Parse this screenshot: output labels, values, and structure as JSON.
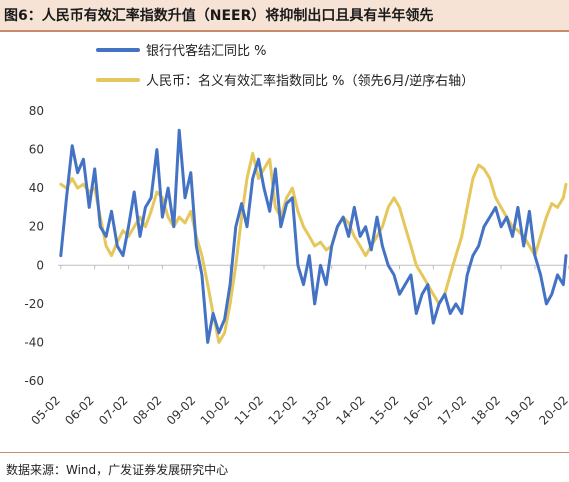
{
  "title": "图6：人民币有效汇率指数升值（NEER）将抑制出口且具有半年领先",
  "source": "数据来源：Wind，广发证券发展研究中心",
  "colors": {
    "blue": "#4472c4",
    "gold": "#e6c75b",
    "axis": "#bfbfbf"
  },
  "chart_data": {
    "type": "line",
    "ylim": [
      -60,
      80
    ],
    "yticks": [
      -60,
      -40,
      -20,
      0,
      20,
      40,
      60,
      80
    ],
    "xlim": [
      2005.0,
      2020.0
    ],
    "xticks": [
      {
        "label": "05-02",
        "x": 2005.083
      },
      {
        "label": "06-02",
        "x": 2006.083
      },
      {
        "label": "07-02",
        "x": 2007.083
      },
      {
        "label": "08-02",
        "x": 2008.083
      },
      {
        "label": "09-02",
        "x": 2009.083
      },
      {
        "label": "10-02",
        "x": 2010.083
      },
      {
        "label": "11-02",
        "x": 2011.083
      },
      {
        "label": "12-02",
        "x": 2012.083
      },
      {
        "label": "13-02",
        "x": 2013.083
      },
      {
        "label": "14-02",
        "x": 2014.083
      },
      {
        "label": "15-02",
        "x": 2015.083
      },
      {
        "label": "16-02",
        "x": 2016.083
      },
      {
        "label": "17-02",
        "x": 2017.083
      },
      {
        "label": "18-02",
        "x": 2018.083
      },
      {
        "label": "19-02",
        "x": 2019.083
      },
      {
        "label": "20-02",
        "x": 2020.083
      }
    ],
    "legend_position": "top-left",
    "series": [
      {
        "name": "银行代客结汇同比 %",
        "color": "#4472c4",
        "points": [
          [
            2005.083,
            5
          ],
          [
            2005.25,
            35
          ],
          [
            2005.42,
            62
          ],
          [
            2005.58,
            48
          ],
          [
            2005.75,
            55
          ],
          [
            2005.92,
            30
          ],
          [
            2006.083,
            50
          ],
          [
            2006.25,
            20
          ],
          [
            2006.42,
            15
          ],
          [
            2006.58,
            28
          ],
          [
            2006.75,
            10
          ],
          [
            2006.92,
            5
          ],
          [
            2007.083,
            20
          ],
          [
            2007.25,
            38
          ],
          [
            2007.42,
            15
          ],
          [
            2007.58,
            30
          ],
          [
            2007.75,
            35
          ],
          [
            2007.92,
            60
          ],
          [
            2008.083,
            25
          ],
          [
            2008.25,
            40
          ],
          [
            2008.42,
            20
          ],
          [
            2008.58,
            70
          ],
          [
            2008.75,
            35
          ],
          [
            2008.92,
            48
          ],
          [
            2009.083,
            10
          ],
          [
            2009.25,
            -5
          ],
          [
            2009.42,
            -40
          ],
          [
            2009.58,
            -25
          ],
          [
            2009.75,
            -35
          ],
          [
            2009.92,
            -28
          ],
          [
            2010.083,
            -10
          ],
          [
            2010.25,
            20
          ],
          [
            2010.42,
            32
          ],
          [
            2010.58,
            20
          ],
          [
            2010.75,
            45
          ],
          [
            2010.92,
            55
          ],
          [
            2011.083,
            40
          ],
          [
            2011.25,
            28
          ],
          [
            2011.42,
            50
          ],
          [
            2011.58,
            20
          ],
          [
            2011.75,
            32
          ],
          [
            2011.92,
            35
          ],
          [
            2012.083,
            0
          ],
          [
            2012.25,
            -10
          ],
          [
            2012.42,
            5
          ],
          [
            2012.58,
            -20
          ],
          [
            2012.75,
            0
          ],
          [
            2012.92,
            -10
          ],
          [
            2013.083,
            10
          ],
          [
            2013.25,
            20
          ],
          [
            2013.42,
            25
          ],
          [
            2013.58,
            15
          ],
          [
            2013.75,
            30
          ],
          [
            2013.92,
            15
          ],
          [
            2014.083,
            20
          ],
          [
            2014.25,
            8
          ],
          [
            2014.42,
            25
          ],
          [
            2014.58,
            10
          ],
          [
            2014.75,
            0
          ],
          [
            2014.92,
            -5
          ],
          [
            2015.083,
            -15
          ],
          [
            2015.25,
            -10
          ],
          [
            2015.42,
            -5
          ],
          [
            2015.58,
            -25
          ],
          [
            2015.75,
            -15
          ],
          [
            2015.92,
            -10
          ],
          [
            2016.083,
            -30
          ],
          [
            2016.25,
            -20
          ],
          [
            2016.42,
            -15
          ],
          [
            2016.58,
            -25
          ],
          [
            2016.75,
            -20
          ],
          [
            2016.92,
            -25
          ],
          [
            2017.083,
            -5
          ],
          [
            2017.25,
            5
          ],
          [
            2017.42,
            10
          ],
          [
            2017.58,
            20
          ],
          [
            2017.75,
            25
          ],
          [
            2017.92,
            30
          ],
          [
            2018.083,
            20
          ],
          [
            2018.25,
            25
          ],
          [
            2018.42,
            15
          ],
          [
            2018.58,
            30
          ],
          [
            2018.75,
            10
          ],
          [
            2018.92,
            28
          ],
          [
            2019.083,
            5
          ],
          [
            2019.25,
            -5
          ],
          [
            2019.42,
            -20
          ],
          [
            2019.58,
            -15
          ],
          [
            2019.75,
            -5
          ],
          [
            2019.92,
            -10
          ],
          [
            2020.0,
            5
          ]
        ]
      },
      {
        "name": "人民币：名义有效汇率指数同比 %（领先6月/逆序右轴）",
        "color": "#e6c75b",
        "points": [
          [
            2005.083,
            42
          ],
          [
            2005.25,
            40
          ],
          [
            2005.42,
            45
          ],
          [
            2005.58,
            40
          ],
          [
            2005.75,
            42
          ],
          [
            2005.92,
            38
          ],
          [
            2006.083,
            40
          ],
          [
            2006.25,
            25
          ],
          [
            2006.42,
            10
          ],
          [
            2006.58,
            5
          ],
          [
            2006.75,
            12
          ],
          [
            2006.92,
            18
          ],
          [
            2007.083,
            15
          ],
          [
            2007.25,
            20
          ],
          [
            2007.42,
            25
          ],
          [
            2007.58,
            20
          ],
          [
            2007.75,
            28
          ],
          [
            2007.92,
            38
          ],
          [
            2008.083,
            35
          ],
          [
            2008.25,
            25
          ],
          [
            2008.42,
            20
          ],
          [
            2008.58,
            25
          ],
          [
            2008.75,
            22
          ],
          [
            2008.92,
            28
          ],
          [
            2009.083,
            15
          ],
          [
            2009.25,
            5
          ],
          [
            2009.42,
            -10
          ],
          [
            2009.58,
            -25
          ],
          [
            2009.75,
            -40
          ],
          [
            2009.92,
            -35
          ],
          [
            2010.083,
            -20
          ],
          [
            2010.25,
            0
          ],
          [
            2010.42,
            25
          ],
          [
            2010.58,
            45
          ],
          [
            2010.75,
            58
          ],
          [
            2010.92,
            45
          ],
          [
            2011.083,
            50
          ],
          [
            2011.25,
            55
          ],
          [
            2011.42,
            30
          ],
          [
            2011.58,
            25
          ],
          [
            2011.75,
            35
          ],
          [
            2011.92,
            40
          ],
          [
            2012.083,
            28
          ],
          [
            2012.25,
            20
          ],
          [
            2012.42,
            15
          ],
          [
            2012.58,
            10
          ],
          [
            2012.75,
            12
          ],
          [
            2012.92,
            8
          ],
          [
            2013.083,
            10
          ],
          [
            2013.25,
            20
          ],
          [
            2013.42,
            25
          ],
          [
            2013.58,
            22
          ],
          [
            2013.75,
            15
          ],
          [
            2013.92,
            10
          ],
          [
            2014.083,
            5
          ],
          [
            2014.25,
            10
          ],
          [
            2014.42,
            15
          ],
          [
            2014.58,
            20
          ],
          [
            2014.75,
            30
          ],
          [
            2014.92,
            35
          ],
          [
            2015.083,
            30
          ],
          [
            2015.25,
            20
          ],
          [
            2015.42,
            10
          ],
          [
            2015.58,
            0
          ],
          [
            2015.75,
            -5
          ],
          [
            2015.92,
            -10
          ],
          [
            2016.083,
            -15
          ],
          [
            2016.25,
            -20
          ],
          [
            2016.42,
            -15
          ],
          [
            2016.58,
            -5
          ],
          [
            2016.75,
            5
          ],
          [
            2016.92,
            15
          ],
          [
            2017.083,
            30
          ],
          [
            2017.25,
            45
          ],
          [
            2017.42,
            52
          ],
          [
            2017.58,
            50
          ],
          [
            2017.75,
            45
          ],
          [
            2017.92,
            35
          ],
          [
            2018.083,
            30
          ],
          [
            2018.25,
            25
          ],
          [
            2018.42,
            20
          ],
          [
            2018.58,
            18
          ],
          [
            2018.75,
            15
          ],
          [
            2018.92,
            10
          ],
          [
            2019.083,
            5
          ],
          [
            2019.25,
            15
          ],
          [
            2019.42,
            25
          ],
          [
            2019.58,
            32
          ],
          [
            2019.75,
            30
          ],
          [
            2019.92,
            35
          ],
          [
            2020.0,
            42
          ]
        ]
      }
    ]
  }
}
